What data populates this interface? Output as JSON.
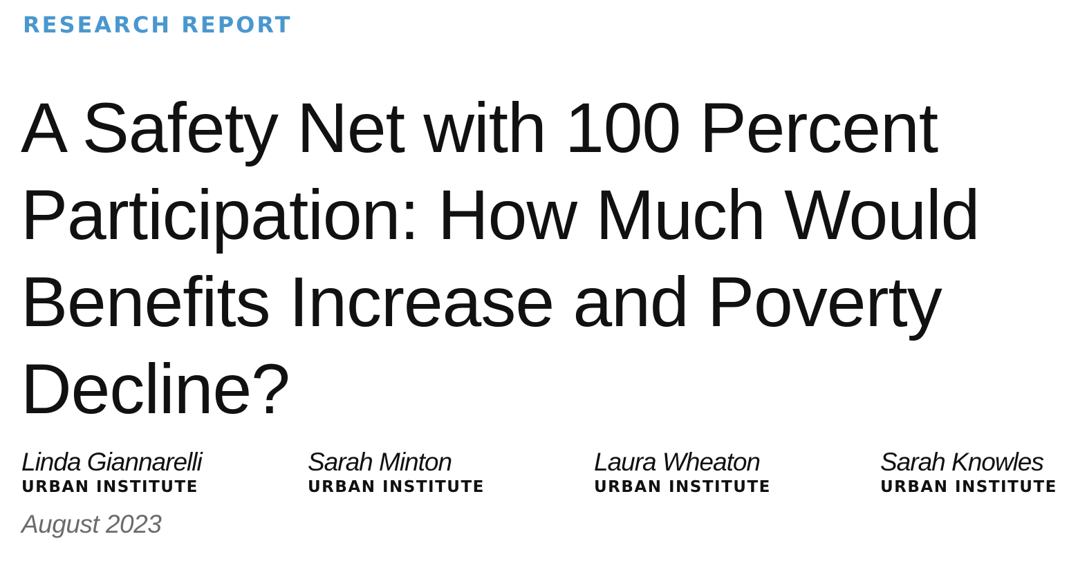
{
  "header": {
    "report_type": "RESEARCH REPORT"
  },
  "title": {
    "lines": [
      "A Safety Net with 100 Percent",
      "Participation: How Much Would",
      "Benefits Increase and Poverty",
      "Decline?"
    ]
  },
  "authors": [
    {
      "name": "Linda Giannarelli",
      "org": "URBAN INSTITUTE"
    },
    {
      "name": "Sarah Minton",
      "org": "URBAN INSTITUTE"
    },
    {
      "name": "Laura Wheaton",
      "org": "URBAN INSTITUTE"
    },
    {
      "name": "Sarah Knowles",
      "org": "URBAN INSTITUTE"
    }
  ],
  "date": "August 2023",
  "colors": {
    "accent": "#4a97cf",
    "text": "#111111",
    "date_text": "#6b6b6b"
  }
}
